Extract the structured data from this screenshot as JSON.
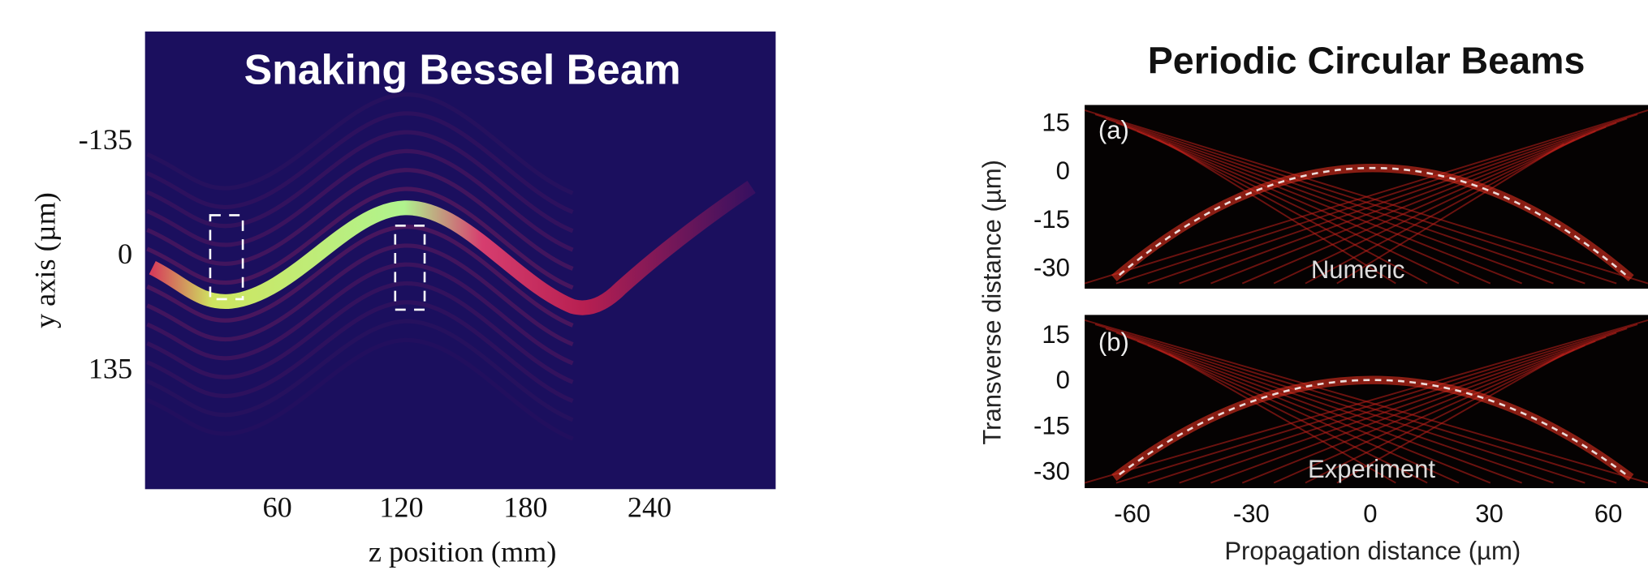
{
  "chart_data": [
    {
      "type": "image",
      "title": "Snaking Bessel Beam",
      "x_label": "z position (mm)",
      "y_label": "y axis (µm)",
      "xlim": [
        -4,
        301
      ],
      "xticks": [
        60,
        120,
        180,
        240
      ],
      "ylim": [
        274,
        -266
      ],
      "yticks": [
        -135,
        0,
        135
      ]
    },
    {
      "type": "image",
      "title": "Periodic Circular Beams",
      "panel_label": "(a)",
      "annotation": "Numeric",
      "y_label": "Transverse distance (µm)",
      "xlim": [
        -72,
        70
      ],
      "ylim": [
        -36,
        21
      ],
      "yticks": [
        15,
        0,
        -15,
        -30
      ]
    },
    {
      "type": "image",
      "panel_label": "(b)",
      "annotation": "Experiment",
      "x_label": "Propagation distance (µm)",
      "xlim": [
        -72,
        70
      ],
      "xticks": [
        -60,
        -30,
        0,
        30,
        60
      ],
      "ylim": [
        -35,
        22
      ],
      "yticks": [
        15,
        0,
        -15,
        -30
      ]
    }
  ]
}
